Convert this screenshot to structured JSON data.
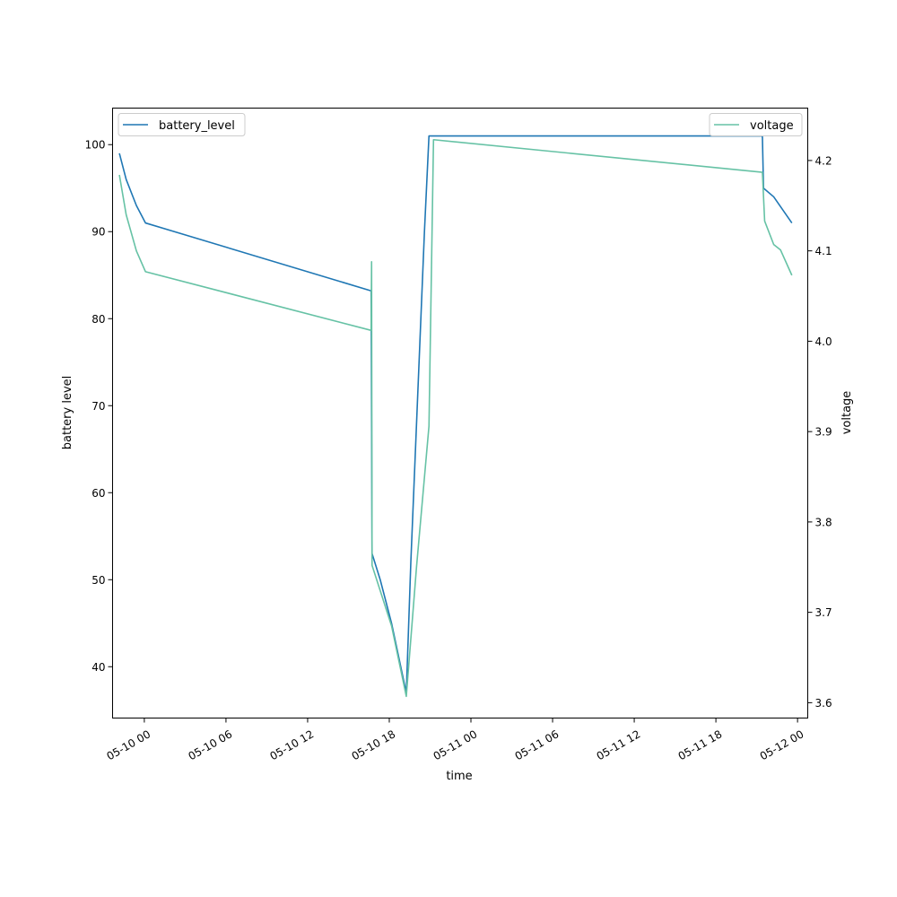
{
  "chart_data": {
    "type": "line",
    "xlabel": "time",
    "ylabel_left": "battery level",
    "ylabel_right": "voltage",
    "x_ticks": [
      "05-10 00",
      "05-10 06",
      "05-10 12",
      "05-10 18",
      "05-11 00",
      "05-11 06",
      "05-11 12",
      "05-11 18",
      "05-12 00"
    ],
    "y_left_ticks": [
      40,
      50,
      60,
      70,
      80,
      90,
      100
    ],
    "y_right_ticks": [
      "3.6",
      "3.7",
      "3.8",
      "3.9",
      "4.0",
      "4.1",
      "4.2"
    ],
    "xlim": [
      "2023-05-09T21:40",
      "2023-05-12T00:45"
    ],
    "ylim_left": [
      34.1,
      104.2
    ],
    "ylim_right": [
      3.583,
      4.258
    ],
    "grid": false,
    "series": [
      {
        "name": "battery_level",
        "axis": "left",
        "color": "#1f77b4",
        "points": [
          [
            "2023-05-09T22:10",
            99
          ],
          [
            "2023-05-09T22:40",
            96
          ],
          [
            "2023-05-09T23:25",
            93
          ],
          [
            "2023-05-10T00:05",
            91
          ],
          [
            "2023-05-10T16:40",
            83.2
          ],
          [
            "2023-05-10T16:44",
            53
          ],
          [
            "2023-05-10T17:20",
            50
          ],
          [
            "2023-05-10T18:10",
            45
          ],
          [
            "2023-05-10T19:15",
            37
          ],
          [
            "2023-05-10T19:35",
            52
          ],
          [
            "2023-05-10T20:35",
            90
          ],
          [
            "2023-05-10T20:55",
            101
          ],
          [
            "2023-05-11T21:25",
            101
          ],
          [
            "2023-05-11T21:30",
            95
          ],
          [
            "2023-05-11T22:15",
            94
          ],
          [
            "2023-05-11T23:35",
            91
          ]
        ]
      },
      {
        "name": "voltage",
        "axis": "right",
        "color": "#66c2a5",
        "points": [
          [
            "2023-05-09T22:10",
            4.184
          ],
          [
            "2023-05-09T22:40",
            4.14
          ],
          [
            "2023-05-09T23:25",
            4.1
          ],
          [
            "2023-05-10T00:05",
            4.077
          ],
          [
            "2023-05-10T16:40",
            4.012
          ],
          [
            "2023-05-10T16:42",
            4.088
          ],
          [
            "2023-05-10T16:44",
            3.752
          ],
          [
            "2023-05-10T18:10",
            3.685
          ],
          [
            "2023-05-10T19:15",
            3.607
          ],
          [
            "2023-05-10T20:00",
            3.75
          ],
          [
            "2023-05-10T20:55",
            3.906
          ],
          [
            "2023-05-10T21:15",
            4.223
          ],
          [
            "2023-05-11T21:25",
            4.187
          ],
          [
            "2023-05-11T21:35",
            4.133
          ],
          [
            "2023-05-11T22:15",
            4.107
          ],
          [
            "2023-05-11T22:45",
            4.101
          ],
          [
            "2023-05-11T23:35",
            4.073
          ]
        ]
      }
    ]
  }
}
